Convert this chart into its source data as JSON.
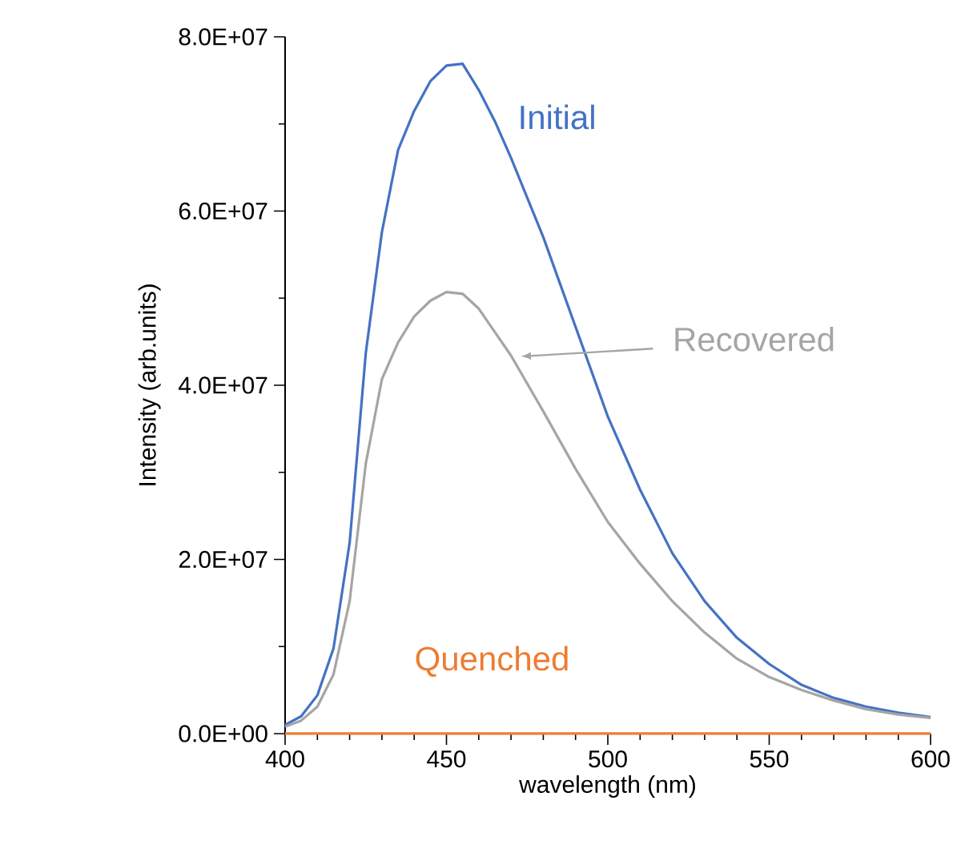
{
  "chart_data": {
    "type": "line",
    "xlabel": "wavelength (nm)",
    "ylabel": "Intensity (arb.units)",
    "x": [
      400,
      405,
      410,
      415,
      420,
      425,
      430,
      435,
      440,
      445,
      450,
      455,
      460,
      465,
      470,
      480,
      490,
      500,
      510,
      520,
      530,
      540,
      550,
      560,
      570,
      580,
      590,
      600
    ],
    "series": [
      {
        "name": "Initial",
        "color": "#4472c4",
        "values": [
          1000000,
          2000000,
          4400000,
          9800000,
          21900000,
          43700000,
          57600000,
          67000000,
          71500000,
          74900000,
          76700000,
          76900000,
          73900000,
          70300000,
          66100000,
          57000000,
          46700000,
          36400000,
          28000000,
          20700000,
          15200000,
          11000000,
          8000000,
          5600000,
          4100000,
          3100000,
          2400000,
          1900000
        ]
      },
      {
        "name": "Recovered",
        "color": "#a5a5a5",
        "values": [
          800000,
          1500000,
          3100000,
          6800000,
          15200000,
          31000000,
          40700000,
          44900000,
          47900000,
          49700000,
          50700000,
          50500000,
          48800000,
          46100000,
          43400000,
          37000000,
          30400000,
          24300000,
          19500000,
          15200000,
          11600000,
          8600000,
          6500000,
          5000000,
          3800000,
          2800000,
          2200000,
          1800000
        ]
      },
      {
        "name": "Quenched",
        "color": "#ed7d31",
        "values": [
          0,
          0,
          0,
          0,
          0,
          0,
          0,
          0,
          0,
          0,
          0,
          0,
          0,
          0,
          0,
          0,
          0,
          0,
          0,
          0,
          0,
          0,
          0,
          0,
          0,
          0,
          0,
          0
        ]
      }
    ],
    "xlim": [
      400,
      600
    ],
    "ylim": [
      0,
      80000000
    ],
    "xticks": [
      400,
      450,
      500,
      550,
      600
    ],
    "yticks": [
      {
        "value": 0,
        "label": "0.0E+00"
      },
      {
        "value": 20000000,
        "label": "2.0E+07"
      },
      {
        "value": 40000000,
        "label": "4.0E+07"
      },
      {
        "value": 60000000,
        "label": "6.0E+07"
      },
      {
        "value": 80000000,
        "label": "8.0E+07"
      }
    ],
    "marker": "none",
    "line_style": "solid"
  }
}
